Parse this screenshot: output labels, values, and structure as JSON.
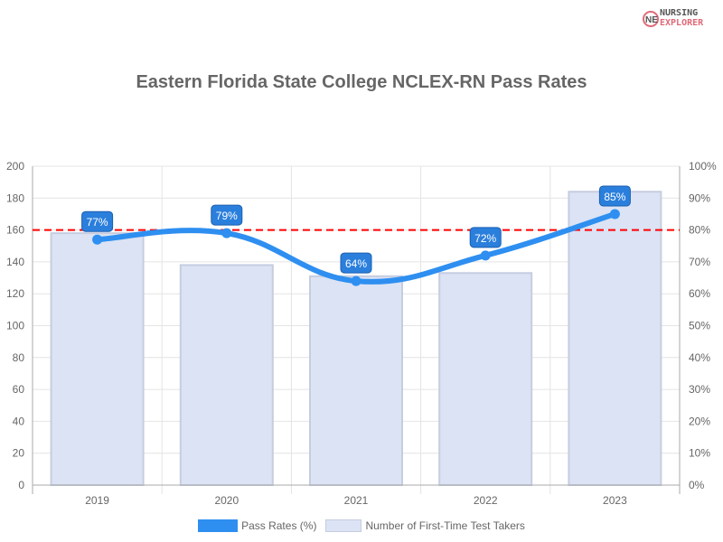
{
  "brand": {
    "logo_text": [
      "NURSING",
      "EXPLORER"
    ]
  },
  "chart_data": {
    "type": "bar+line",
    "title": "Eastern Florida State College NCLEX-RN Pass Rates",
    "categories": [
      "2019",
      "2020",
      "2021",
      "2022",
      "2023"
    ],
    "series": [
      {
        "name": "Pass Rates (%)",
        "type": "line",
        "axis": "right",
        "values": [
          77,
          79,
          64,
          72,
          85
        ],
        "data_labels": [
          "77%",
          "79%",
          "64%",
          "72%",
          "85%"
        ],
        "color": "#2e8ff0"
      },
      {
        "name": "Number of First-Time Test Takers",
        "type": "bar",
        "axis": "left",
        "values": [
          158,
          138,
          131,
          133,
          184
        ],
        "color": "#dbe3f5"
      }
    ],
    "y_left": {
      "range": [
        0,
        200
      ],
      "ticks": [
        "0",
        "20",
        "40",
        "60",
        "80",
        "100",
        "120",
        "140",
        "160",
        "180",
        "200"
      ]
    },
    "y_right": {
      "range": [
        0,
        100
      ],
      "ticks": [
        "0%",
        "10%",
        "20%",
        "30%",
        "40%",
        "50%",
        "60%",
        "70%",
        "80%",
        "90%",
        "100%"
      ]
    },
    "reference_line": {
      "value": 80,
      "axis": "right",
      "color": "#ff0000",
      "style": "dashed"
    },
    "grid": true,
    "legend": "bottom"
  }
}
